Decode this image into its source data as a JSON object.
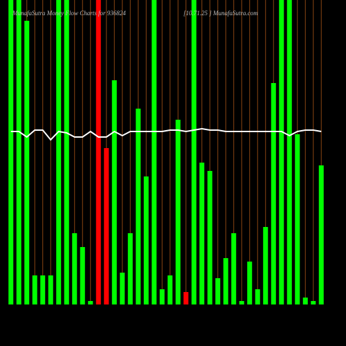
{
  "chart_data": {
    "type": "bar",
    "title": "MunafaSutra  Money Flow  Charts for 936824",
    "subtitle": "[10.71.25   ] MunafaSutra.com",
    "ylim": [
      0,
      440
    ],
    "grid": true,
    "grid_color": "#8b4513",
    "line_color": "#ffffff",
    "bar_colors": [
      "#00ff00",
      "#00ff00",
      "#00ff00",
      "#00ff00",
      "#00ff00",
      "#00ff00",
      "#00ff00",
      "#00ff00",
      "#00ff00",
      "#00ff00",
      "#00ff00",
      "#ff0000",
      "#ff0000",
      "#00ff00",
      "#00ff00",
      "#00ff00",
      "#00ff00",
      "#00ff00",
      "#00ff00",
      "#00ff00",
      "#00ff00",
      "#00ff00",
      "#ff0000",
      "#00ff00",
      "#00ff00",
      "#00ff00",
      "#00ff00",
      "#00ff00",
      "#00ff00",
      "#00ff00",
      "#00ff00",
      "#00ff00",
      "#00ff00",
      "#00ff00",
      "#00ff00",
      "#00ff00",
      "#00ff00",
      "#00ff00",
      "#00ff00",
      "#00ff00"
    ],
    "values": [
      440,
      440,
      410,
      42,
      42,
      42,
      440,
      440,
      103,
      83,
      5,
      440,
      226,
      324,
      46,
      103,
      283,
      185,
      440,
      22,
      42,
      267,
      18,
      440,
      205,
      193,
      38,
      67,
      103,
      5,
      62,
      22,
      112,
      320,
      440,
      440,
      246,
      10,
      5,
      201
    ],
    "line": [
      250,
      250,
      242,
      252,
      252,
      238,
      250,
      248,
      242,
      242,
      250,
      242,
      242,
      250,
      244,
      250,
      250,
      250,
      250,
      250,
      252,
      252,
      250,
      252,
      254,
      252,
      252,
      250,
      250,
      250,
      250,
      250,
      250,
      250,
      250,
      244,
      250,
      252,
      252,
      250
    ]
  }
}
